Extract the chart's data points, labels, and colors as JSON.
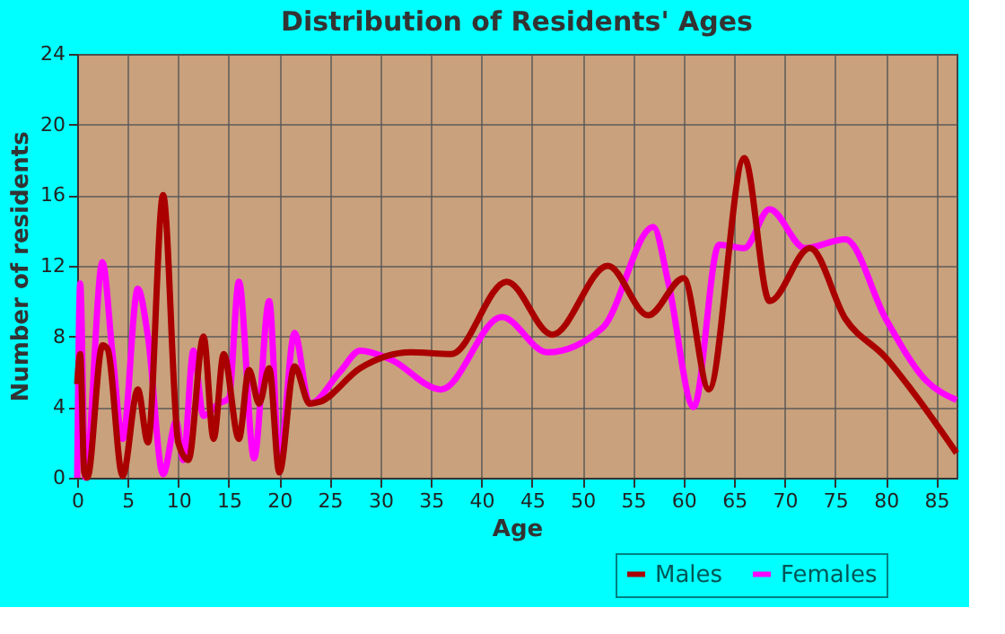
{
  "chart_data": {
    "type": "line",
    "title": "Distribution of Residents' Ages",
    "xlabel": "Age",
    "ylabel": "Number of residents",
    "xlim": [
      0,
      87
    ],
    "xticks": [
      0,
      5,
      10,
      15,
      20,
      25,
      30,
      35,
      40,
      45,
      50,
      55,
      60,
      65,
      70,
      75,
      80,
      85
    ],
    "ylim": [
      0,
      24
    ],
    "yticks": [
      0,
      4,
      8,
      12,
      16,
      20,
      24
    ],
    "grid": true,
    "legend": "bottom right",
    "line_style": "solid",
    "marker": "none",
    "series": [
      {
        "name": "Males",
        "color": "#aa0000",
        "x": [
          0,
          0.3,
          0.7,
          1,
          2.5,
          3,
          4.5,
          6,
          7,
          8.5,
          10,
          11,
          12.5,
          13.5,
          14.5,
          16,
          17,
          18,
          19,
          20,
          21.5,
          23,
          24,
          28,
          33,
          37,
          42.5,
          47,
          52.5,
          56.5,
          60,
          62.5,
          66,
          68.5,
          72.5,
          76,
          80,
          82.5,
          87
        ],
        "values": [
          5.3,
          7,
          0.3,
          0,
          7.5,
          7.3,
          0.1,
          5,
          2,
          16,
          2,
          1,
          8,
          2.2,
          7,
          2.2,
          6.1,
          4.2,
          6.2,
          0.3,
          6.3,
          4.2,
          4.3,
          6.2,
          7.1,
          7,
          11.1,
          8.1,
          12,
          9.2,
          11.3,
          5,
          18.1,
          10,
          13,
          9,
          6.8,
          5,
          1.4
        ]
      },
      {
        "name": "Females",
        "color": "#ff00ff",
        "x": [
          0,
          0.3,
          0.8,
          2.5,
          3.5,
          4.5,
          6,
          7,
          8.5,
          9.8,
          10.5,
          11.5,
          12.5,
          14,
          15,
          16,
          17.5,
          19,
          20,
          21.5,
          23,
          26,
          28,
          31,
          36,
          42,
          46.5,
          52,
          57,
          58.5,
          61,
          63.5,
          66,
          68.5,
          72,
          76,
          80,
          84,
          87
        ],
        "values": [
          0,
          11,
          0,
          12.2,
          7,
          2.2,
          10.7,
          8,
          0.2,
          3.2,
          1,
          7.2,
          3.5,
          4.2,
          4.5,
          11.1,
          1.1,
          10,
          1,
          8.2,
          4.2,
          6,
          7.2,
          6.7,
          5,
          9.1,
          7.1,
          8.5,
          14.2,
          11,
          4,
          13.2,
          13,
          15.2,
          13,
          13.5,
          9,
          5.5,
          4.4
        ]
      }
    ]
  }
}
